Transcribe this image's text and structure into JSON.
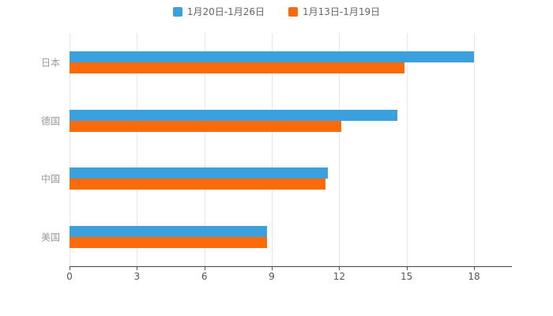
{
  "chart_data": {
    "type": "bar",
    "orientation": "horizontal",
    "title": "",
    "xlabel": "",
    "ylabel": "",
    "categories": [
      "日本",
      "德国",
      "中国",
      "美国"
    ],
    "series": [
      {
        "name": "1月20日-1月26日",
        "color": "#3BA0DB",
        "values": [
          18,
          14.6,
          11.5,
          8.8
        ]
      },
      {
        "name": "1月13日-1月19日",
        "color": "#FB6B0B",
        "values": [
          14.9,
          12.1,
          11.4,
          8.8
        ]
      }
    ],
    "xlim": [
      0,
      18
    ],
    "xticks": [
      0,
      3,
      6,
      9,
      12,
      15,
      18
    ],
    "grid": "vertical",
    "legend_position": "top-center",
    "colors": {
      "grid": "#e6e6e6",
      "axis": "#444444",
      "tick_text": "#555555",
      "category_text": "#999999",
      "legend_text": "#666666",
      "background": "#ffffff"
    }
  }
}
